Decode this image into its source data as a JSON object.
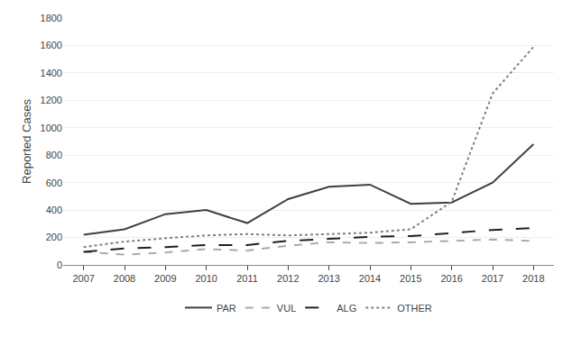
{
  "chart_data": {
    "type": "line",
    "y_label": "Reported Cases",
    "x": [
      2007,
      2008,
      2009,
      2010,
      2011,
      2012,
      2013,
      2014,
      2015,
      2016,
      2017,
      2018
    ],
    "series": [
      {
        "name": "PAR",
        "color": "#404040",
        "line_style": "solid",
        "values": [
          220,
          260,
          370,
          400,
          305,
          480,
          570,
          585,
          445,
          455,
          600,
          880
        ]
      },
      {
        "name": "VUL",
        "color": "#aaaaaa",
        "line_style": "dashed",
        "values": [
          95,
          75,
          90,
          115,
          105,
          140,
          165,
          160,
          165,
          175,
          185,
          175
        ]
      },
      {
        "name": "ALG",
        "color": "#202020",
        "line_style": "longdashed",
        "values": [
          95,
          120,
          130,
          145,
          145,
          175,
          190,
          205,
          210,
          235,
          255,
          270
        ]
      },
      {
        "name": "OTHER",
        "color": "#808080",
        "line_style": "dotted",
        "values": [
          130,
          170,
          195,
          215,
          225,
          215,
          225,
          235,
          260,
          460,
          1250,
          1590
        ]
      }
    ],
    "xlim": [
      2006.5,
      2018.5
    ],
    "xticks": [
      2007,
      2008,
      2009,
      2010,
      2011,
      2012,
      2013,
      2014,
      2015,
      2016,
      2017,
      2018
    ],
    "ylim": [
      0,
      1800
    ],
    "yticks": [
      0,
      200,
      400,
      600,
      800,
      1000,
      1200,
      1400,
      1600,
      1800
    ],
    "grid": "y",
    "legend": "bottom"
  }
}
